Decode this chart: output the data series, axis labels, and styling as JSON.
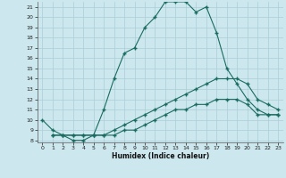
{
  "xlabel": "Humidex (Indice chaleur)",
  "bg_color": "#cce8ee",
  "grid_color": "#aacdd6",
  "line_color": "#1a6b60",
  "xlim": [
    -0.5,
    23.5
  ],
  "ylim": [
    7.8,
    21.5
  ],
  "yticks": [
    8,
    9,
    10,
    11,
    12,
    13,
    14,
    15,
    16,
    17,
    18,
    19,
    20,
    21
  ],
  "xticks": [
    0,
    1,
    2,
    3,
    4,
    5,
    6,
    7,
    8,
    9,
    10,
    11,
    12,
    13,
    14,
    15,
    16,
    17,
    18,
    19,
    20,
    21,
    22,
    23
  ],
  "series1_x": [
    0,
    1,
    2,
    3,
    4,
    5,
    6,
    7,
    8,
    9,
    10,
    11,
    12,
    13,
    14,
    15,
    16,
    17,
    18,
    19,
    20,
    21,
    22,
    23
  ],
  "series1_y": [
    10,
    9,
    8.5,
    8,
    8,
    8.5,
    11,
    14,
    16.5,
    17,
    19,
    20,
    21.5,
    21.5,
    21.5,
    20.5,
    21,
    18.5,
    15,
    13.5,
    12,
    11,
    10.5,
    10.5
  ],
  "series2_x": [
    1,
    2,
    3,
    4,
    5,
    6,
    7,
    8,
    9,
    10,
    11,
    12,
    13,
    14,
    15,
    16,
    17,
    18,
    19,
    20,
    21,
    22,
    23
  ],
  "series2_y": [
    8.5,
    8.5,
    8.5,
    8.5,
    8.5,
    8.5,
    9,
    9.5,
    10,
    10.5,
    11,
    11.5,
    12,
    12.5,
    13,
    13.5,
    14,
    14,
    14,
    13.5,
    12,
    11.5,
    11
  ],
  "series3_x": [
    1,
    2,
    3,
    4,
    5,
    6,
    7,
    8,
    9,
    10,
    11,
    12,
    13,
    14,
    15,
    16,
    17,
    18,
    19,
    20,
    21,
    22,
    23
  ],
  "series3_y": [
    8.5,
    8.5,
    8.5,
    8.5,
    8.5,
    8.5,
    8.5,
    9,
    9,
    9.5,
    10,
    10.5,
    11,
    11,
    11.5,
    11.5,
    12,
    12,
    12,
    11.5,
    10.5,
    10.5,
    10.5
  ]
}
